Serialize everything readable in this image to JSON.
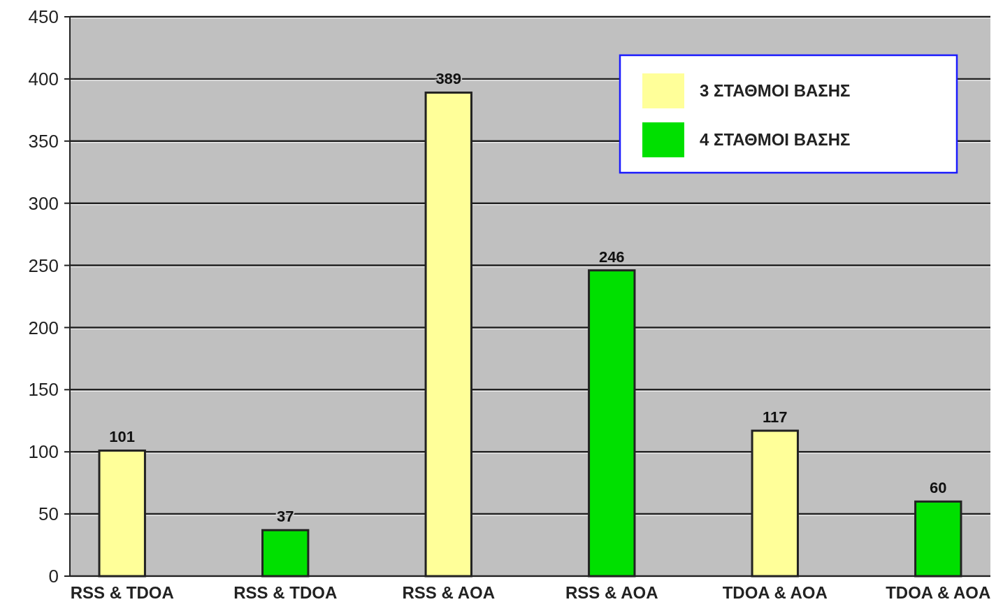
{
  "chart_data": {
    "type": "bar",
    "categories": [
      "RSS & TDOA",
      "RSS & TDOA",
      "RSS & AOA",
      "RSS & AOA",
      "TDOA & AOA",
      "TDOA & AOA"
    ],
    "series": [
      {
        "name": "3 ΣΤΑΘΜΟΙ ΒΑΣΗΣ",
        "color": "#ffff99",
        "values": [
          101,
          null,
          389,
          null,
          117,
          null
        ]
      },
      {
        "name": "4 ΣΤΑΘΜΟΙ ΒΑΣΗΣ",
        "color": "#00e000",
        "values": [
          null,
          37,
          null,
          246,
          null,
          60
        ]
      }
    ],
    "ylim": [
      0,
      450
    ],
    "yticks": [
      0,
      50,
      100,
      150,
      200,
      250,
      300,
      350,
      400,
      450
    ],
    "grid": "y",
    "legend": "top right",
    "data_labels": true
  }
}
